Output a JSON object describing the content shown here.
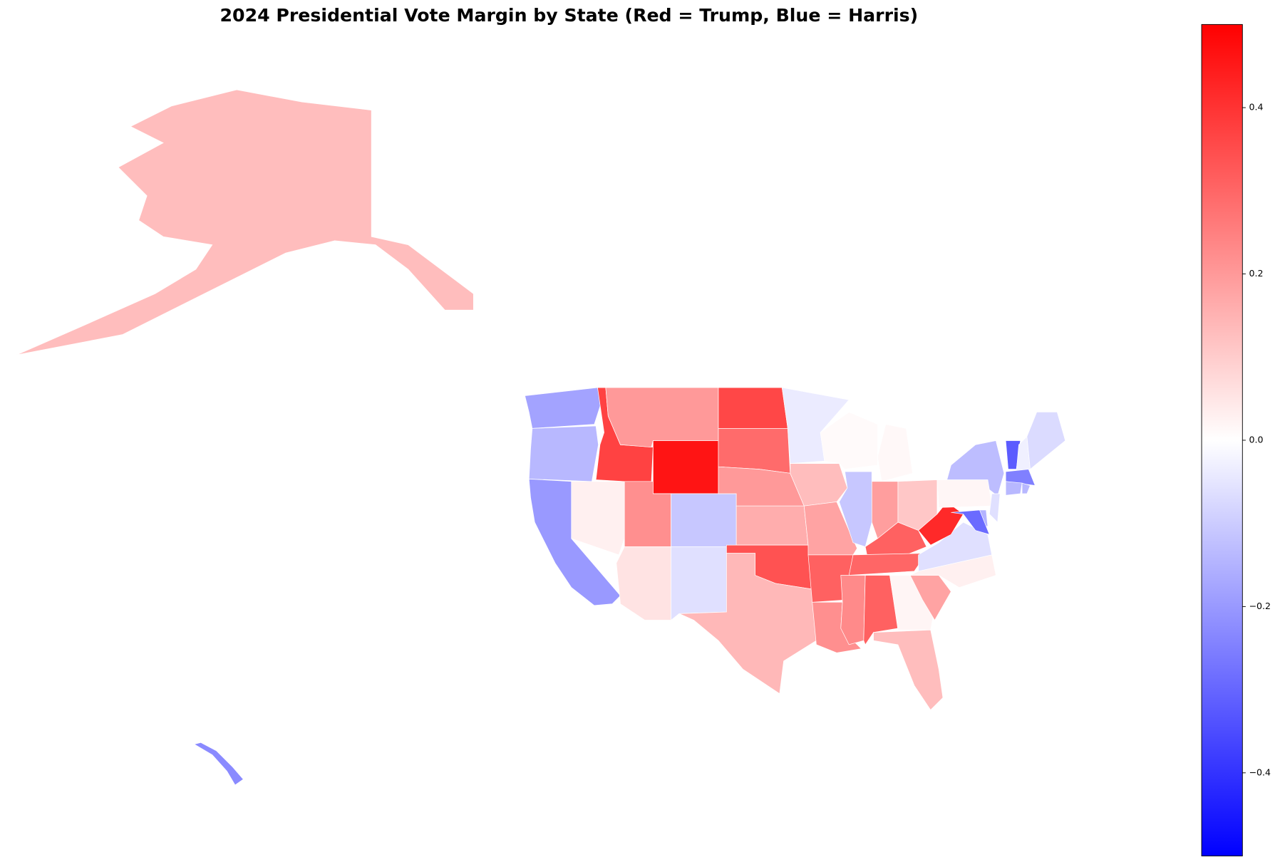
{
  "chart_data": {
    "type": "choropleth",
    "title": "2024 Presidential Vote Margin by State (Red = Trump, Blue = Harris)",
    "values": [
      -0.18,
      -0.14,
      -0.2,
      0.03,
      0.37,
      0.2,
      0.46,
      0.22,
      0.055,
      -0.11,
      -0.06,
      0.36,
      0.29,
      0.2,
      0.16,
      0.34,
      0.14,
      -0.04,
      0.13,
      0.18,
      0.31,
      0.22,
      0.009,
      -0.11,
      0.014,
      0.19,
      0.11,
      0.31,
      0.3,
      0.23,
      0.31,
      0.02,
      0.13,
      0.18,
      0.03,
      -0.06,
      0.42,
      0.017,
      -0.13,
      -0.32,
      -0.03,
      -0.07,
      -0.25,
      -0.14,
      -0.14,
      -0.06,
      -0.15,
      -0.29,
      0.13,
      -0.23
    ],
    "clim": [
      -0.5,
      0.5
    ],
    "cticks": [
      {
        "value": -0.4,
        "label": "−0.4"
      },
      {
        "value": -0.2,
        "label": "−0.2"
      },
      {
        "value": 0,
        "label": "0.0"
      },
      0.2,
      0.4
    ]
  }
}
